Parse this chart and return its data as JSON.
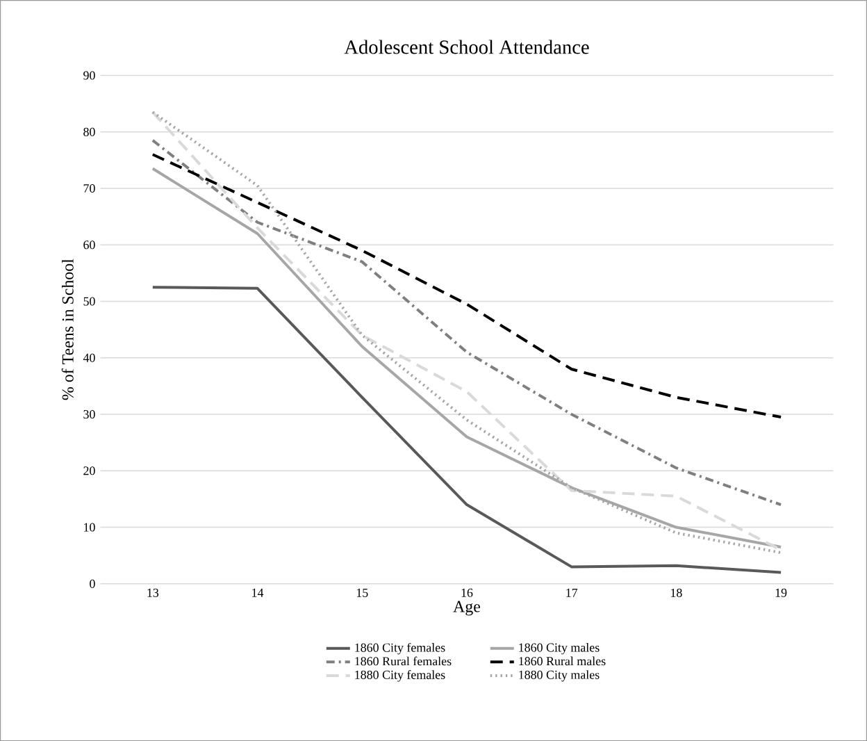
{
  "chart_data": {
    "type": "line",
    "title": "Adolescent School Attendance",
    "xlabel": "Age",
    "ylabel": "% of Teens in School",
    "categories": [
      "13",
      "14",
      "15",
      "16",
      "17",
      "18",
      "19"
    ],
    "ylim": [
      0,
      90
    ],
    "yticks": [
      0,
      10,
      20,
      30,
      40,
      50,
      60,
      70,
      80,
      90
    ],
    "grid": "y",
    "legend": "bottom",
    "marker": "none",
    "series": [
      {
        "name": "1860 City females",
        "color": "#595959",
        "line_style": "solid",
        "values": [
          52.5,
          52.3,
          33,
          14,
          3,
          3.2,
          2
        ]
      },
      {
        "name": "1860 City males",
        "color": "#a6a6a6",
        "line_style": "solid",
        "values": [
          73.5,
          62,
          42,
          26,
          17,
          10,
          6.5
        ]
      },
      {
        "name": "1860 Rural females",
        "color": "#7f7f7f",
        "line_style": "dashdot",
        "values": [
          78.5,
          64,
          57,
          41,
          30,
          20.5,
          14
        ]
      },
      {
        "name": "1860 Rural males",
        "color": "#000000",
        "line_style": "dashed",
        "values": [
          76,
          67.5,
          59,
          49.5,
          38,
          33,
          29.5
        ]
      },
      {
        "name": "1880 City females",
        "color": "#d9d9d9",
        "line_style": "dashed",
        "values": [
          83.5,
          63,
          44,
          34,
          16.5,
          15.5,
          6
        ]
      },
      {
        "name": "1880 City males",
        "color": "#a6a6a6",
        "line_style": "dotted",
        "values": [
          83.5,
          70.5,
          44,
          29,
          17,
          9,
          5.5
        ]
      }
    ]
  }
}
